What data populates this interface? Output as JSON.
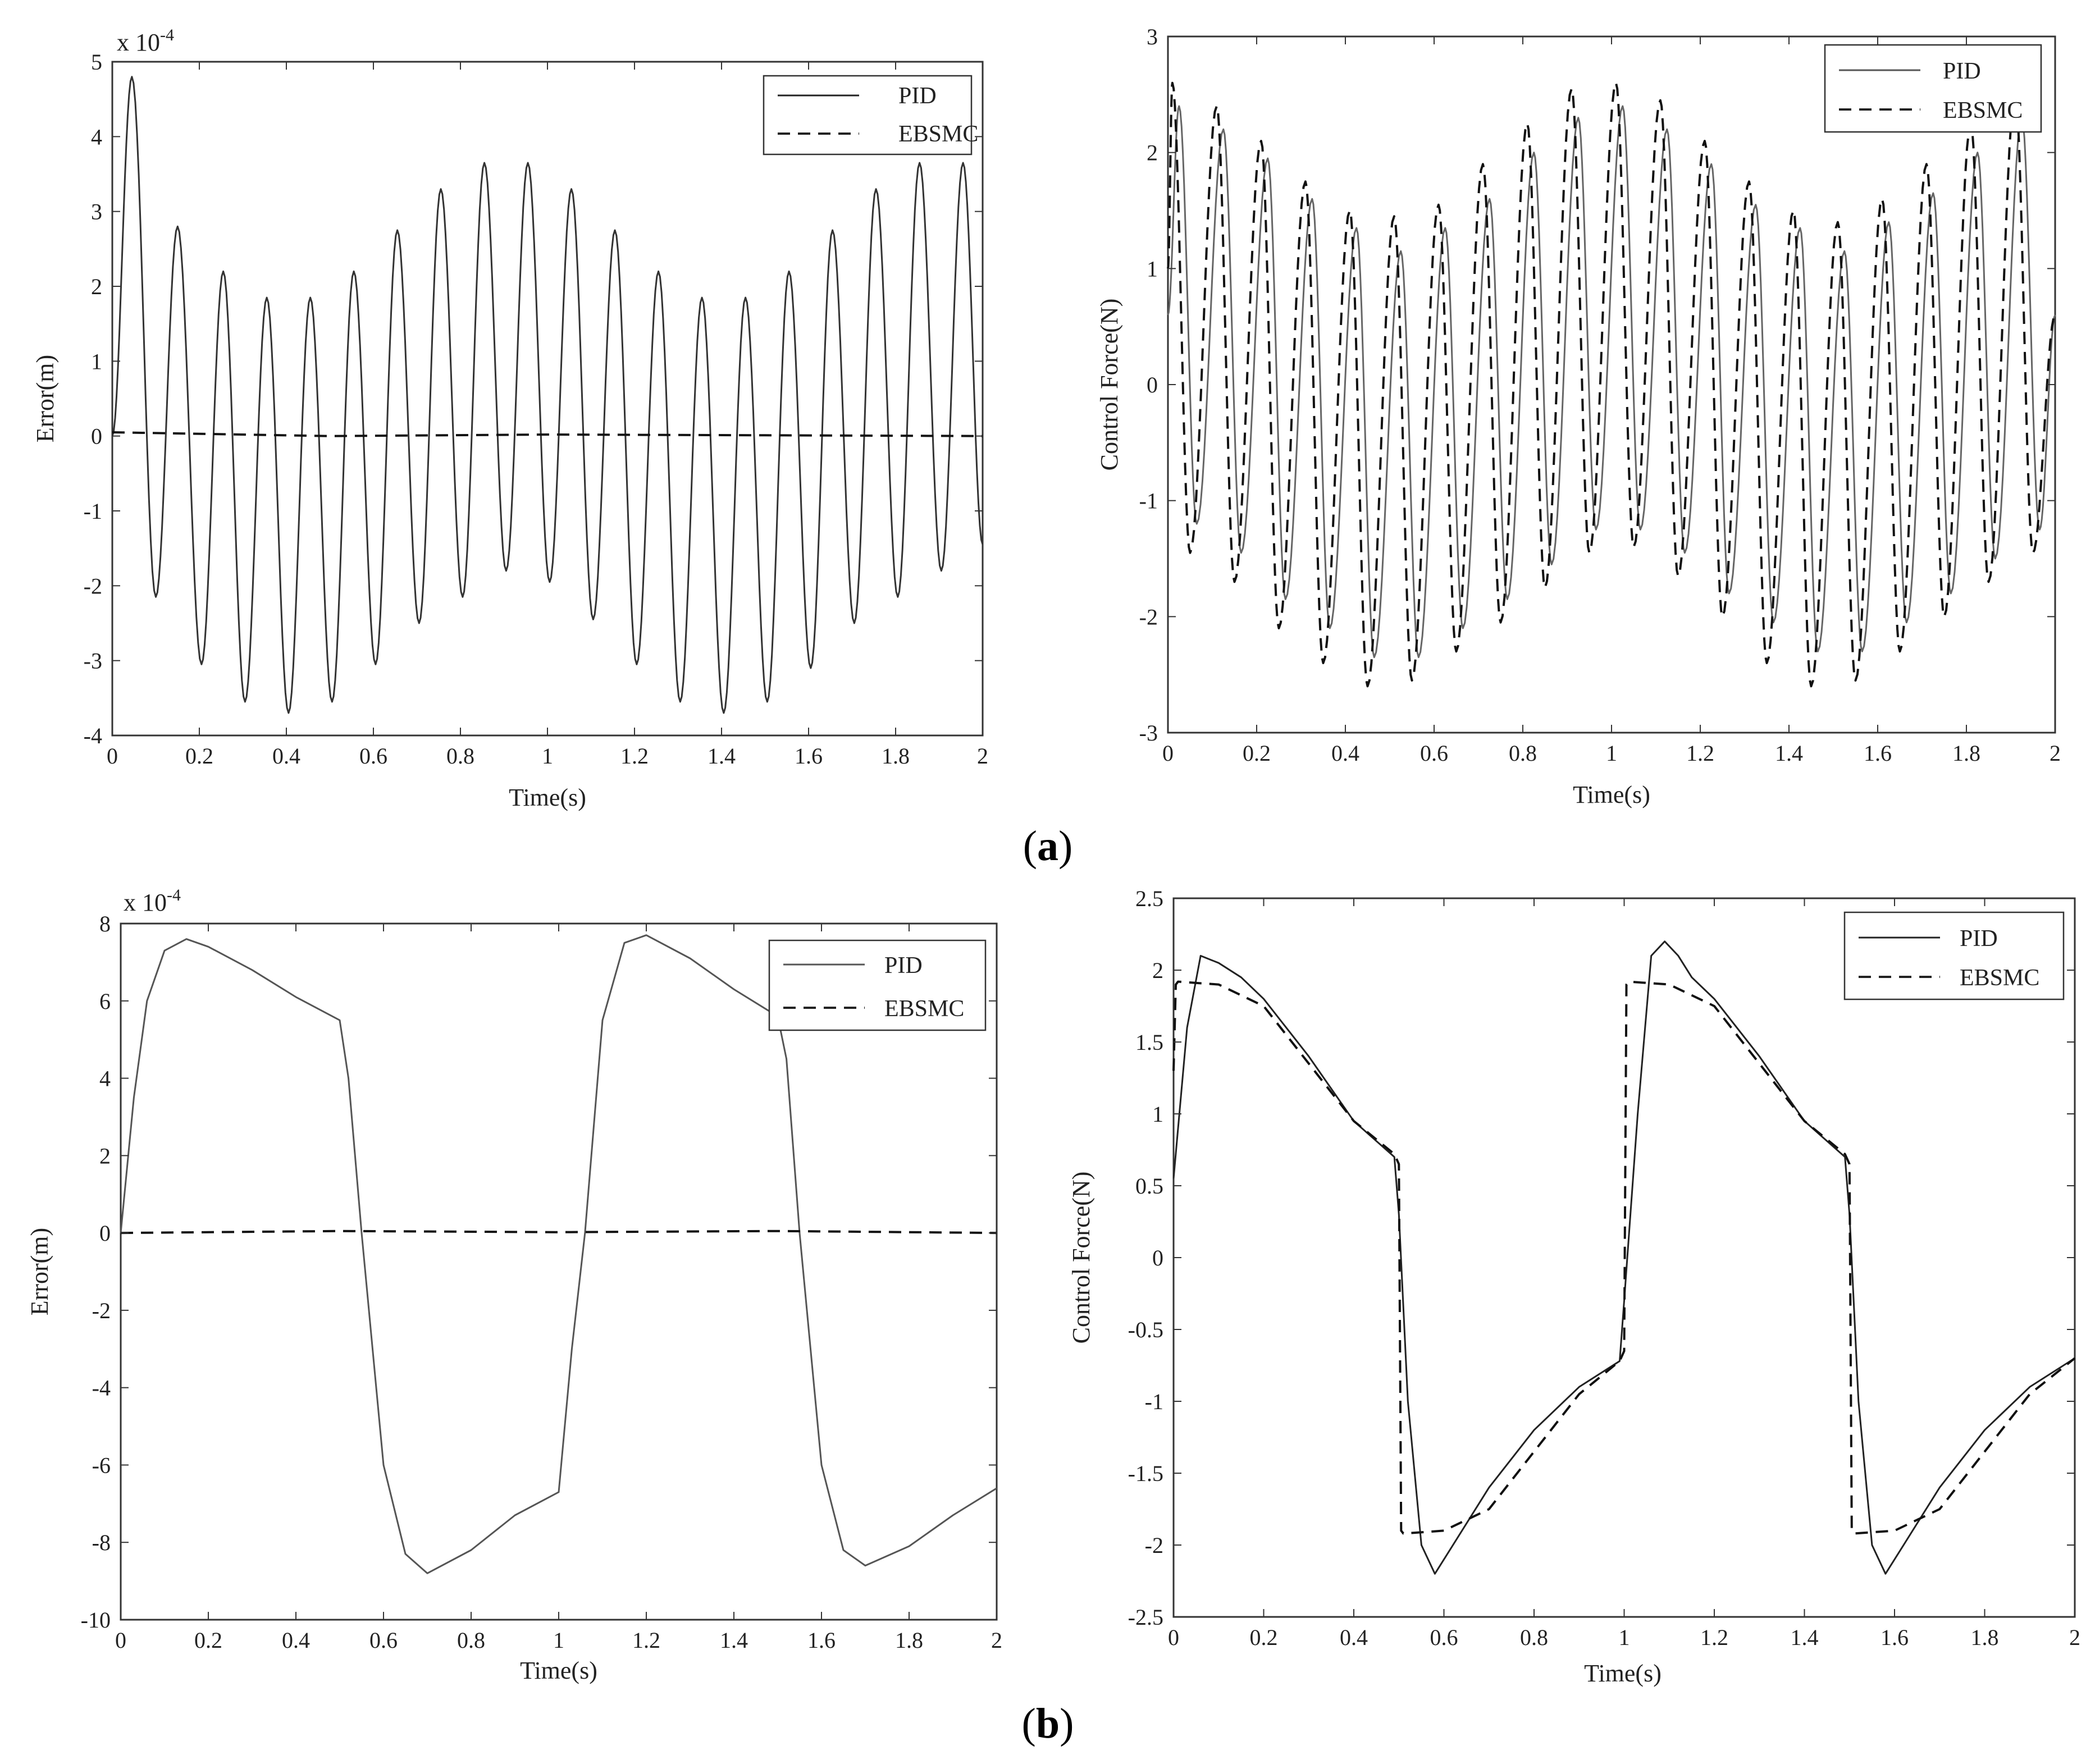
{
  "figure": {
    "caption_a": "(a)",
    "caption_a_letter": "a",
    "caption_b": "(b)",
    "caption_b_letter": "b"
  },
  "chart_data": [
    {
      "id": "a-error",
      "type": "line",
      "xlabel": "Time(s)",
      "ylabel": "Error(m)",
      "ylabel_prefix": "x 10",
      "ylabel_exponent": "-4",
      "xlim": [
        0,
        2
      ],
      "ylim": [
        -4,
        5
      ],
      "xticks": [
        0,
        0.2,
        0.4,
        0.6,
        0.8,
        1,
        1.2,
        1.4,
        1.6,
        1.8,
        2
      ],
      "xtick_labels": [
        "0",
        "0.2",
        "0.4",
        "0.6",
        "0.8",
        "1",
        "1.2",
        "1.4",
        "1.6",
        "1.8",
        "2"
      ],
      "yticks": [
        -4,
        -3,
        -2,
        -1,
        0,
        1,
        2,
        3,
        4,
        5
      ],
      "ytick_labels": [
        "-4",
        "-3",
        "-2",
        "-1",
        "0",
        "1",
        "2",
        "3",
        "4",
        "5"
      ],
      "legend": [
        "PID",
        "EBSMC"
      ],
      "legend_position": "top-right",
      "series": [
        {
          "name": "PID",
          "style": "solid",
          "x": [
            0,
            0.045,
            0.1,
            0.15,
            0.205,
            0.255,
            0.305,
            0.355,
            0.405,
            0.455,
            0.505,
            0.555,
            0.605,
            0.655,
            0.705,
            0.755,
            0.805,
            0.855,
            0.905,
            0.955,
            1.005,
            1.055,
            1.105,
            1.155,
            1.205,
            1.255,
            1.305,
            1.355,
            1.405,
            1.455,
            1.505,
            1.555,
            1.605,
            1.655,
            1.705,
            1.755,
            1.805,
            1.855,
            1.905,
            1.955,
            2.0
          ],
          "y": [
            0,
            4.8,
            -2.15,
            2.8,
            -3.05,
            2.2,
            -3.55,
            1.85,
            -3.7,
            1.85,
            -3.55,
            2.2,
            -3.05,
            2.75,
            -2.5,
            3.3,
            -2.15,
            3.65,
            -1.8,
            3.65,
            -1.95,
            3.3,
            -2.45,
            2.75,
            -3.05,
            2.2,
            -3.55,
            1.85,
            -3.7,
            1.85,
            -3.55,
            2.2,
            -3.1,
            2.75,
            -2.5,
            3.3,
            -2.15,
            3.65,
            -1.8,
            3.65,
            -1.45
          ]
        },
        {
          "name": "EBSMC",
          "style": "dashed",
          "x": [
            0,
            0.5,
            1,
            1.5,
            2
          ],
          "y": [
            0.05,
            0.0,
            0.02,
            0.01,
            0.0
          ]
        }
      ]
    },
    {
      "id": "a-force",
      "type": "line",
      "xlabel": "Time(s)",
      "ylabel": "Control Force(N)",
      "xlim": [
        0,
        2
      ],
      "ylim": [
        -3,
        3
      ],
      "xticks": [
        0,
        0.2,
        0.4,
        0.6,
        0.8,
        1,
        1.2,
        1.4,
        1.6,
        1.8,
        2
      ],
      "xtick_labels": [
        "0",
        "0.2",
        "0.4",
        "0.6",
        "0.8",
        "1",
        "1.2",
        "1.4",
        "1.6",
        "1.8",
        "2"
      ],
      "yticks": [
        -3,
        -2,
        -1,
        0,
        1,
        2,
        3
      ],
      "ytick_labels": [
        "-3",
        "-2",
        "-1",
        "0",
        "1",
        "2",
        "3"
      ],
      "legend": [
        "PID",
        "EBSMC"
      ],
      "legend_position": "top-right",
      "series": [
        {
          "name": "PID",
          "style": "solid",
          "x": [
            0,
            0.025,
            0.065,
            0.125,
            0.165,
            0.225,
            0.265,
            0.325,
            0.365,
            0.425,
            0.465,
            0.525,
            0.565,
            0.625,
            0.665,
            0.725,
            0.765,
            0.825,
            0.865,
            0.925,
            0.965,
            1.025,
            1.065,
            1.125,
            1.165,
            1.225,
            1.265,
            1.325,
            1.365,
            1.425,
            1.465,
            1.525,
            1.565,
            1.625,
            1.665,
            1.725,
            1.765,
            1.825,
            1.865,
            1.925,
            1.965,
            2.0
          ],
          "y": [
            0.6,
            2.4,
            -1.2,
            2.2,
            -1.45,
            1.95,
            -1.85,
            1.6,
            -2.1,
            1.35,
            -2.35,
            1.15,
            -2.35,
            1.35,
            -2.1,
            1.6,
            -1.85,
            2.0,
            -1.55,
            2.3,
            -1.25,
            2.4,
            -1.25,
            2.2,
            -1.45,
            1.9,
            -1.8,
            1.55,
            -2.05,
            1.35,
            -2.3,
            1.15,
            -2.3,
            1.4,
            -2.05,
            1.65,
            -1.8,
            2.0,
            -1.5,
            2.3,
            -1.25,
            0.6
          ]
        },
        {
          "name": "EBSMC",
          "style": "dashed",
          "x": [
            0,
            0.01,
            0.05,
            0.11,
            0.15,
            0.21,
            0.25,
            0.31,
            0.35,
            0.41,
            0.45,
            0.51,
            0.55,
            0.61,
            0.65,
            0.71,
            0.75,
            0.81,
            0.85,
            0.91,
            0.95,
            1.01,
            1.05,
            1.11,
            1.15,
            1.21,
            1.25,
            1.31,
            1.35,
            1.41,
            1.45,
            1.51,
            1.55,
            1.61,
            1.65,
            1.71,
            1.75,
            1.81,
            1.85,
            1.91,
            1.95,
            2.0
          ],
          "y": [
            1.0,
            2.6,
            -1.45,
            2.4,
            -1.7,
            2.1,
            -2.1,
            1.75,
            -2.4,
            1.5,
            -2.6,
            1.45,
            -2.55,
            1.55,
            -2.3,
            1.9,
            -2.05,
            2.25,
            -1.75,
            2.55,
            -1.45,
            2.6,
            -1.4,
            2.45,
            -1.65,
            2.1,
            -2.0,
            1.75,
            -2.4,
            1.5,
            -2.6,
            1.4,
            -2.55,
            1.6,
            -2.3,
            1.9,
            -2.0,
            2.25,
            -1.7,
            2.5,
            -1.45,
            0.6
          ]
        }
      ]
    },
    {
      "id": "b-error",
      "type": "line",
      "xlabel": "Time(s)",
      "ylabel": "Error(m)",
      "ylabel_prefix": "x 10",
      "ylabel_exponent": "-4",
      "xlim": [
        0,
        2
      ],
      "ylim": [
        -10,
        8
      ],
      "xticks": [
        0,
        0.2,
        0.4,
        0.6,
        0.8,
        1,
        1.2,
        1.4,
        1.6,
        1.8,
        2
      ],
      "xtick_labels": [
        "0",
        "0.2",
        "0.4",
        "0.6",
        "0.8",
        "1",
        "1.2",
        "1.4",
        "1.6",
        "1.8",
        "2"
      ],
      "yticks": [
        -10,
        -8,
        -6,
        -4,
        -2,
        0,
        2,
        4,
        6,
        8
      ],
      "ytick_labels": [
        "-10",
        "-8",
        "-6",
        "-4",
        "-2",
        "0",
        "2",
        "4",
        "6",
        "8"
      ],
      "legend": [
        "PID",
        "EBSMC"
      ],
      "legend_position": "top-right",
      "series": [
        {
          "name": "PID",
          "style": "solid",
          "x": [
            0,
            0.03,
            0.06,
            0.1,
            0.15,
            0.2,
            0.3,
            0.4,
            0.5,
            0.52,
            0.55,
            0.6,
            0.65,
            0.7,
            0.8,
            0.9,
            1.0,
            1.03,
            1.06,
            1.1,
            1.15,
            1.2,
            1.3,
            1.4,
            1.5,
            1.52,
            1.55,
            1.6,
            1.65,
            1.7,
            1.8,
            1.9,
            2.0
          ],
          "y": [
            0,
            3.5,
            6.0,
            7.3,
            7.6,
            7.4,
            6.8,
            6.1,
            5.5,
            4.0,
            0,
            -6.0,
            -8.3,
            -8.8,
            -8.2,
            -7.3,
            -6.7,
            -3.0,
            0,
            5.5,
            7.5,
            7.7,
            7.1,
            6.3,
            5.6,
            4.5,
            0,
            -6.0,
            -8.2,
            -8.6,
            -8.1,
            -7.3,
            -6.6
          ]
        },
        {
          "name": "EBSMC",
          "style": "dashed",
          "x": [
            0,
            0.5,
            1,
            1.5,
            2
          ],
          "y": [
            0,
            0.05,
            0.02,
            0.05,
            0.0
          ]
        }
      ]
    },
    {
      "id": "b-force",
      "type": "line",
      "xlabel": "Time(s)",
      "ylabel": "Control Force(N)",
      "xlim": [
        0,
        2
      ],
      "ylim": [
        -2.5,
        2.5
      ],
      "xticks": [
        0,
        0.2,
        0.4,
        0.6,
        0.8,
        1,
        1.2,
        1.4,
        1.6,
        1.8,
        2
      ],
      "xtick_labels": [
        "0",
        "0.2",
        "0.4",
        "0.6",
        "0.8",
        "1",
        "1.2",
        "1.4",
        "1.6",
        "1.8",
        "2"
      ],
      "yticks": [
        -2.5,
        -2,
        -1.5,
        -1,
        -0.5,
        0,
        0.5,
        1,
        1.5,
        2,
        2.5
      ],
      "ytick_labels": [
        "-2.5",
        "-2",
        "-1.5",
        "-1",
        "-0.5",
        "0",
        "0.5",
        "1",
        "1.5",
        "2",
        "2.5"
      ],
      "legend": [
        "PID",
        "EBSMC"
      ],
      "legend_position": "top-right",
      "series": [
        {
          "name": "PID",
          "style": "solid",
          "x": [
            0,
            0.03,
            0.06,
            0.1,
            0.15,
            0.2,
            0.3,
            0.4,
            0.49,
            0.5,
            0.52,
            0.55,
            0.58,
            0.62,
            0.7,
            0.8,
            0.9,
            0.99,
            1.0,
            1.03,
            1.06,
            1.09,
            1.12,
            1.15,
            1.2,
            1.3,
            1.4,
            1.49,
            1.5,
            1.52,
            1.55,
            1.58,
            1.62,
            1.7,
            1.8,
            1.9,
            2.0
          ],
          "y": [
            0.55,
            1.6,
            2.1,
            2.05,
            1.95,
            1.8,
            1.4,
            0.95,
            0.7,
            0.3,
            -1.0,
            -2.0,
            -2.2,
            -2.0,
            -1.6,
            -1.2,
            -0.9,
            -0.72,
            -0.3,
            1.0,
            2.1,
            2.2,
            2.1,
            1.95,
            1.8,
            1.4,
            0.95,
            0.7,
            0.3,
            -1.0,
            -2.0,
            -2.2,
            -2.0,
            -1.6,
            -1.2,
            -0.9,
            -0.7
          ]
        },
        {
          "name": "EBSMC",
          "style": "dashed",
          "x": [
            0,
            0.005,
            0.01,
            0.1,
            0.2,
            0.3,
            0.4,
            0.49,
            0.5,
            0.505,
            0.51,
            0.6,
            0.7,
            0.8,
            0.9,
            0.99,
            1.0,
            1.005,
            1.01,
            1.1,
            1.2,
            1.3,
            1.4,
            1.49,
            1.5,
            1.505,
            1.51,
            1.6,
            1.7,
            1.8,
            1.9,
            2.0
          ],
          "y": [
            1.3,
            1.9,
            1.92,
            1.9,
            1.75,
            1.35,
            0.95,
            0.72,
            0.65,
            -1.9,
            -1.92,
            -1.9,
            -1.75,
            -1.35,
            -0.95,
            -0.72,
            -0.65,
            1.9,
            1.92,
            1.9,
            1.75,
            1.35,
            0.95,
            0.72,
            0.65,
            -1.9,
            -1.92,
            -1.9,
            -1.75,
            -1.35,
            -0.95,
            -0.7
          ]
        }
      ]
    }
  ]
}
